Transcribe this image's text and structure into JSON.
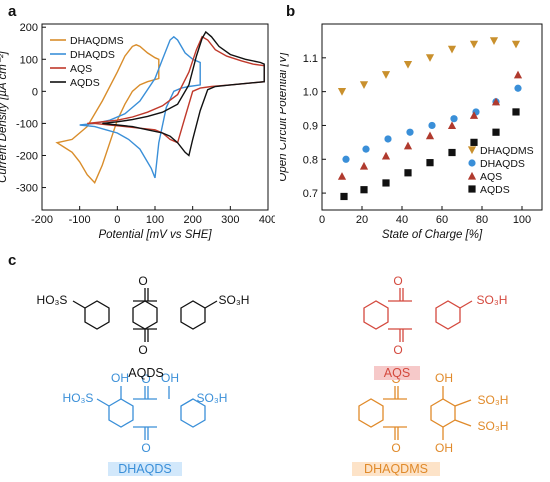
{
  "panels": {
    "a": "a",
    "b": "b",
    "c": "c"
  },
  "colors": {
    "DHAQDMS": "#d98d2b",
    "DHAQDS": "#3a8fd8",
    "AQS": "#c0392b",
    "AQDS": "#111111",
    "AQS_label_bg": "#f6c9c9",
    "DHAQDMS_label_bg": "#fde3c8"
  },
  "chart_data": [
    {
      "type": "line",
      "panel": "a",
      "xlabel": "Potential [mV vs SHE]",
      "ylabel": "Current Density [µA cm⁻²]",
      "xlim": [
        -200,
        400
      ],
      "ylim": [
        -370,
        210
      ],
      "xticks": [
        -200,
        -100,
        0,
        100,
        200,
        300,
        400
      ],
      "yticks": [
        -300,
        -200,
        -100,
        0,
        100,
        200
      ],
      "legend_placement": "top-left",
      "series": [
        {
          "name": "DHAQDMS",
          "color": "#d98d2b",
          "x": [
            -160,
            -120,
            -80,
            -40,
            0,
            20,
            40,
            50,
            60,
            80,
            100,
            110,
            110,
            80,
            60,
            40,
            20,
            0,
            -20,
            -40,
            -60,
            -80,
            -100,
            -120,
            -140,
            -160
          ],
          "y": [
            -160,
            -150,
            -110,
            -30,
            60,
            110,
            140,
            145,
            140,
            120,
            105,
            100,
            40,
            30,
            20,
            0,
            -40,
            -90,
            -160,
            -230,
            -285,
            -260,
            -220,
            -190,
            -175,
            -160
          ]
        },
        {
          "name": "DHAQDS",
          "color": "#3a8fd8",
          "x": [
            -100,
            -60,
            -20,
            20,
            60,
            100,
            120,
            140,
            150,
            160,
            180,
            200,
            220,
            220,
            190,
            170,
            150,
            130,
            110,
            100,
            90,
            60,
            30,
            0,
            -30,
            -60,
            -100
          ],
          "y": [
            -105,
            -100,
            -90,
            -70,
            -30,
            40,
            100,
            160,
            170,
            160,
            120,
            100,
            90,
            20,
            15,
            10,
            0,
            -50,
            -160,
            -270,
            -240,
            -180,
            -150,
            -130,
            -120,
            -110,
            -105
          ]
        },
        {
          "name": "AQS",
          "color": "#c0392b",
          "x": [
            -80,
            -40,
            0,
            40,
            80,
            120,
            160,
            190,
            210,
            225,
            240,
            260,
            290,
            330,
            360,
            390,
            390,
            300,
            250,
            220,
            200,
            180,
            160,
            140,
            120,
            100,
            60,
            20,
            -20,
            -60,
            -80
          ],
          "y": [
            -100,
            -95,
            -90,
            -80,
            -65,
            -45,
            -10,
            60,
            130,
            170,
            160,
            130,
            110,
            95,
            85,
            80,
            30,
            20,
            15,
            10,
            0,
            -80,
            -160,
            -150,
            -130,
            -120,
            -115,
            -110,
            -105,
            -100,
            -100
          ]
        },
        {
          "name": "AQDS",
          "color": "#111111",
          "x": [
            -40,
            0,
            40,
            80,
            120,
            160,
            190,
            210,
            225,
            235,
            250,
            270,
            300,
            340,
            380,
            390,
            390,
            300,
            260,
            240,
            220,
            200,
            190,
            180,
            160,
            140,
            120,
            80,
            40,
            0,
            -40
          ],
          "y": [
            -100,
            -95,
            -88,
            -78,
            -65,
            -40,
            20,
            110,
            165,
            185,
            170,
            140,
            115,
            100,
            90,
            85,
            30,
            20,
            15,
            5,
            -60,
            -150,
            -200,
            -190,
            -160,
            -140,
            -130,
            -120,
            -110,
            -105,
            -100
          ]
        }
      ]
    },
    {
      "type": "scatter",
      "panel": "b",
      "xlabel": "State of Charge [%]",
      "ylabel": "Open Circuit Potential [V]",
      "xlim": [
        0,
        110
      ],
      "ylim": [
        0.65,
        1.2
      ],
      "xticks": [
        0,
        20,
        40,
        60,
        80,
        100
      ],
      "yticks": [
        0.7,
        0.8,
        0.9,
        1.0,
        1.1
      ],
      "legend_placement": "bottom-right",
      "series": [
        {
          "name": "DHAQDMS",
          "marker": "triangle-down",
          "color": "#c9902d",
          "x": [
            10,
            21,
            32,
            43,
            54,
            65,
            76,
            86,
            97
          ],
          "y": [
            1.0,
            1.02,
            1.05,
            1.08,
            1.1,
            1.125,
            1.14,
            1.15,
            1.14
          ]
        },
        {
          "name": "DHAQDS",
          "marker": "circle",
          "color": "#3a8fd8",
          "x": [
            12,
            22,
            33,
            44,
            55,
            66,
            77,
            87,
            98
          ],
          "y": [
            0.8,
            0.83,
            0.86,
            0.88,
            0.9,
            0.92,
            0.94,
            0.97,
            1.01
          ]
        },
        {
          "name": "AQS",
          "marker": "triangle-up",
          "color": "#b03a2e",
          "x": [
            10,
            21,
            32,
            43,
            54,
            65,
            76,
            87,
            98
          ],
          "y": [
            0.75,
            0.78,
            0.81,
            0.84,
            0.87,
            0.9,
            0.93,
            0.97,
            1.05
          ]
        },
        {
          "name": "AQDS",
          "marker": "square",
          "color": "#111111",
          "x": [
            11,
            21,
            32,
            43,
            54,
            65,
            76,
            87,
            97
          ],
          "y": [
            0.69,
            0.71,
            0.73,
            0.76,
            0.79,
            0.82,
            0.85,
            0.88,
            0.94
          ]
        }
      ]
    }
  ],
  "structures": {
    "aqds": {
      "name": "AQDS",
      "sub_left": "HO₃S",
      "sub_right": "SO₃H",
      "oxygen": "O"
    },
    "aqs": {
      "name": "AQS",
      "sub_right": "SO₃H",
      "oxygen": "O"
    },
    "dhaqds": {
      "name": "DHAQDS",
      "sub_left": "HO₃S",
      "sub_right": "SO₃H",
      "oh": "OH",
      "oxygen": "O"
    },
    "dhaqdms": {
      "name": "DHAQDMS",
      "sub_1": "SO₃H",
      "sub_2": "SO₃H",
      "oh": "OH",
      "oxygen": "O"
    }
  }
}
